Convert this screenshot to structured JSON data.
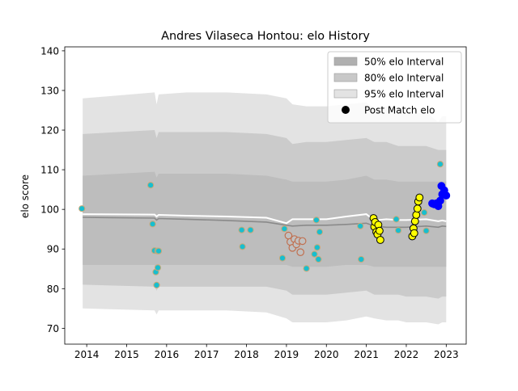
{
  "chart_data": {
    "type": "scatter",
    "title": "Andres Vilaseca Hontou: elo History",
    "xlabel": "",
    "ylabel": "elo score",
    "xlim": [
      2013.45,
      2023.5
    ],
    "ylim": [
      66,
      141
    ],
    "x_ticks": [
      2014,
      2015,
      2016,
      2017,
      2018,
      2019,
      2020,
      2021,
      2022,
      2023
    ],
    "y_ticks": [
      70,
      80,
      90,
      100,
      110,
      120,
      130,
      140
    ],
    "legend": {
      "placement": "top-right",
      "entries": [
        {
          "label": "50% elo Interval",
          "color": "#b0b0b0",
          "kind": "patch"
        },
        {
          "label": "80% elo Interval",
          "color": "#c8c8c8",
          "kind": "patch"
        },
        {
          "label": "95% elo Interval",
          "color": "#e3e3e3",
          "kind": "patch"
        },
        {
          "label": "Post Match elo",
          "color": "#000000",
          "kind": "marker"
        }
      ]
    },
    "colors": {
      "band95": "#e3e3e3",
      "band80": "#cbcbcb",
      "band50": "#bdbdbd",
      "median": "#8a8a8a",
      "mean": "#ffffff",
      "teal": "#17becf",
      "teal_edge": "#c8a878",
      "salmon": "#c0c0c0",
      "salmon_edge": "#c07050",
      "yellow": "#ffff00",
      "blue": "#0000ff"
    },
    "bands": {
      "x": [
        2013.9,
        2015.7,
        2015.75,
        2015.8,
        2016.5,
        2017.5,
        2018.5,
        2019.0,
        2019.15,
        2019.5,
        2020.0,
        2020.5,
        2021.0,
        2021.2,
        2021.5,
        2021.8,
        2022.0,
        2022.5,
        2022.8,
        2022.9,
        2023.0
      ],
      "upper95": [
        128,
        129.5,
        126.5,
        129,
        129.5,
        129.5,
        129,
        128,
        126.5,
        126,
        126,
        126.5,
        127,
        125.5,
        126,
        125.5,
        124,
        124.5,
        122,
        123.5,
        123.5
      ],
      "upper80": [
        119,
        120,
        118,
        119.5,
        119.5,
        119.5,
        119,
        118,
        116.5,
        117,
        117,
        117.5,
        118,
        117,
        117,
        116,
        116,
        116,
        115,
        115,
        115
      ],
      "upper50": [
        108.5,
        109.5,
        108,
        109,
        109,
        109,
        108.5,
        107.5,
        107,
        107,
        107,
        107.5,
        108.5,
        107.5,
        107.5,
        107,
        107,
        107,
        107,
        107,
        107
      ],
      "lower50": [
        86,
        86,
        85,
        86,
        86,
        86,
        86,
        86,
        85.5,
        85.5,
        85.5,
        86,
        86,
        85.5,
        85.5,
        85.5,
        85.5,
        85.5,
        85.5,
        85.5,
        85.5
      ],
      "lower80": [
        81,
        80.5,
        79.5,
        80.5,
        80.5,
        80.5,
        80.5,
        79.5,
        78.5,
        78.5,
        78.5,
        79,
        79.5,
        78.5,
        78.5,
        78.5,
        78,
        78,
        77.5,
        78,
        78
      ],
      "lower95": [
        75,
        74.5,
        73.5,
        74.5,
        74.5,
        74.5,
        74,
        72.5,
        71.5,
        71.5,
        71.5,
        72,
        73,
        72.5,
        72,
        72,
        71.5,
        71.5,
        71,
        71.5,
        71.5
      ]
    },
    "lines": {
      "x": [
        2013.9,
        2015.7,
        2015.75,
        2015.8,
        2016.5,
        2017.5,
        2018.5,
        2019.0,
        2019.15,
        2019.5,
        2020.0,
        2020.5,
        2021.0,
        2021.2,
        2021.5,
        2021.8,
        2022.0,
        2022.5,
        2022.8,
        2022.9,
        2023.0
      ],
      "median": [
        98,
        97.8,
        97.3,
        97.7,
        97.5,
        97.2,
        96.8,
        96,
        95.8,
        96,
        96,
        96.2,
        96.5,
        95.8,
        95.5,
        95.5,
        95.5,
        95.8,
        95.5,
        95.8,
        95.7
      ],
      "mean": [
        98.8,
        98.7,
        98.2,
        98.6,
        98.4,
        98.2,
        97.9,
        96.5,
        97.5,
        97.5,
        97.5,
        98.2,
        98.8,
        97.2,
        97.5,
        97.3,
        97.3,
        97.5,
        97,
        97.2,
        97
      ]
    },
    "series": [
      {
        "style": "teal",
        "x": [
          2013.88,
          2015.6,
          2015.65,
          2015.7,
          2015.73,
          2015.75,
          2015.77,
          2015.78,
          2015.8,
          2017.88,
          2017.9,
          2018.1,
          2018.9,
          2018.95,
          2019.5,
          2019.7,
          2019.75,
          2019.77,
          2019.8,
          2019.83,
          2020.85,
          2020.87,
          2021.75,
          2021.8,
          2022.45,
          2022.5,
          2022.85
        ],
        "y": [
          100.2,
          106.1,
          96.3,
          89.6,
          84.2,
          80.9,
          89.5,
          85.3,
          89.5,
          94.8,
          90.6,
          94.8,
          87.7,
          95.1,
          85.1,
          88.7,
          97.3,
          90.4,
          87.4,
          94.3,
          95.8,
          87.4,
          97.5,
          94.7,
          99.2,
          94.6,
          111.4
        ]
      },
      {
        "style": "salmon",
        "x": [
          2019.05,
          2019.1,
          2019.15,
          2019.2,
          2019.25,
          2019.3,
          2019.35,
          2019.4
        ],
        "y": [
          93.4,
          91.8,
          90.3,
          92.5,
          91.2,
          92.1,
          89.2,
          92.0
        ]
      },
      {
        "style": "yellow",
        "x": [
          2021.18,
          2021.2,
          2021.22,
          2021.25,
          2021.28,
          2021.3,
          2021.33,
          2021.35,
          2022.15,
          2022.18,
          2022.2,
          2022.22,
          2022.25,
          2022.28,
          2022.3,
          2022.33
        ],
        "y": [
          97.8,
          95.6,
          96.8,
          94.3,
          93.7,
          96.1,
          94.6,
          92.3,
          93.2,
          95.2,
          94.0,
          97.0,
          98.6,
          100.2,
          102.0,
          103.0
        ]
      },
      {
        "style": "blue",
        "x": [
          2022.65,
          2022.7,
          2022.75,
          2022.8,
          2022.85,
          2022.88,
          2022.9,
          2022.95,
          2023.0
        ],
        "y": [
          101.5,
          101.3,
          101.5,
          100.8,
          102.2,
          105.9,
          103.8,
          104.8,
          103.5
        ]
      }
    ]
  }
}
